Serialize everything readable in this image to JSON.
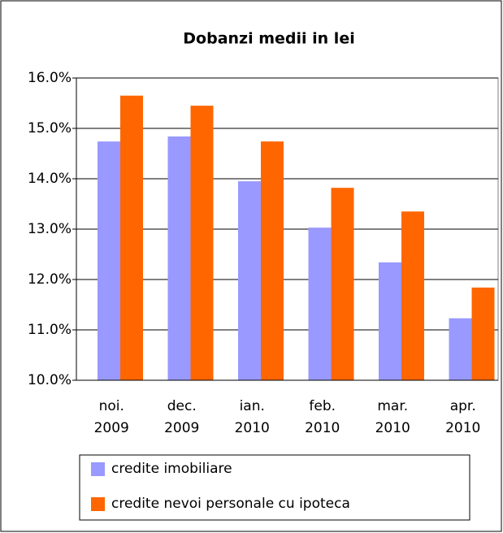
{
  "chart_data": {
    "type": "bar",
    "title": "Dobanzi medii in lei",
    "categories": [
      "noi. 2009",
      "dec. 2009",
      "ian. 2010",
      "feb. 2010",
      "mar. 2010",
      "apr. 2010"
    ],
    "series": [
      {
        "name": "credite imobiliare",
        "color": "#9999ff",
        "values": [
          14.74,
          14.84,
          13.95,
          13.03,
          12.34,
          11.23
        ]
      },
      {
        "name": "credite nevoi personale cu ipoteca",
        "color": "#ff6600",
        "values": [
          15.65,
          15.45,
          14.74,
          13.82,
          13.35,
          11.84
        ]
      }
    ],
    "ylim": [
      10,
      16
    ],
    "yticks": [
      {
        "value": 10,
        "label": "10.0%"
      },
      {
        "value": 11,
        "label": "11.0%"
      },
      {
        "value": 12,
        "label": "12.0%"
      },
      {
        "value": 13,
        "label": "13.0%"
      },
      {
        "value": 14,
        "label": "14.0%"
      },
      {
        "value": 15,
        "label": "15.0%"
      },
      {
        "value": 16,
        "label": "16.0%"
      }
    ],
    "grid": true
  }
}
